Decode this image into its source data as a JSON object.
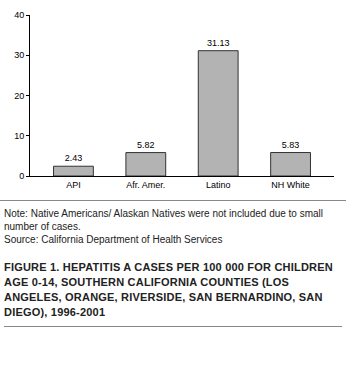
{
  "chart_data": {
    "type": "bar",
    "title": "FIGURE 1. HEPATITIS A CASES PER 100 000 FOR CHILDREN AGE 0-14, SOUTHERN CALIFORNIA COUNTIES (LOS ANGELES, ORANGE, RIVERSIDE, SAN BERNARDINO, SAN DIEGO), 1996-2001",
    "annotations": [
      "Note: Native Americans/ Alaskan Natives were not included due to small number of cases.",
      "Source: California Department of Health Services"
    ],
    "categories": [
      "API",
      "Afr. Amer.",
      "Latino",
      "NH White"
    ],
    "values": [
      2.43,
      5.82,
      31.13,
      5.83
    ],
    "color": "#b3b3b3",
    "ylim": [
      0,
      40
    ],
    "yticks": [
      0,
      10,
      20,
      30,
      40
    ],
    "grid": false,
    "data_labels": true
  }
}
